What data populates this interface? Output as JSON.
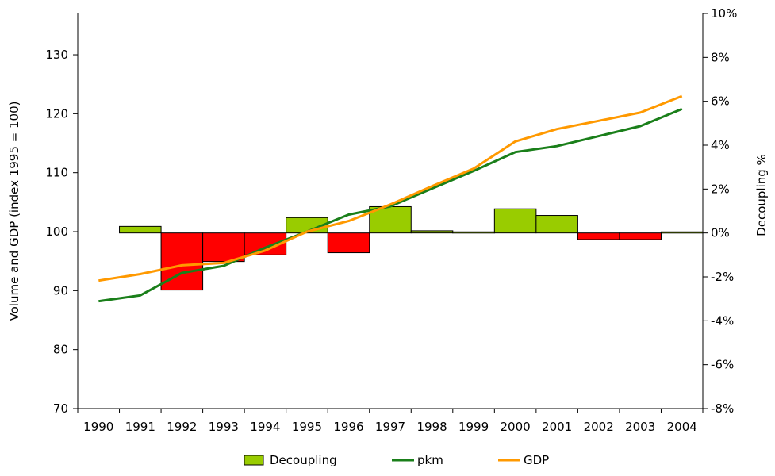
{
  "chart_data": {
    "type": "bar",
    "categories": [
      "1990",
      "1991",
      "1992",
      "1993",
      "1994",
      "1995",
      "1996",
      "1997",
      "1998",
      "1999",
      "2000",
      "2001",
      "2002",
      "2003",
      "2004"
    ],
    "ylabel": "Volume and GDP (index 1995 = 100)",
    "y2label": "Decoupling %",
    "ylim": [
      70,
      137
    ],
    "y2lim": [
      -0.08,
      0.1
    ],
    "yticks": [
      "70",
      "80",
      "90",
      "100",
      "110",
      "120",
      "130"
    ],
    "y2ticks": [
      "-8%",
      "-6%",
      "-4%",
      "-2%",
      "0%",
      "2%",
      "4%",
      "6%",
      "8%",
      "10%"
    ],
    "series": [
      {
        "name": "Decoupling",
        "kind": "bar",
        "axis": "right",
        "color_positive": "#99cc00",
        "color_negative": "#ff0000",
        "values": [
          null,
          0.003,
          -0.026,
          -0.013,
          -0.01,
          0.007,
          -0.009,
          0.012,
          0.001,
          0.0005,
          0.011,
          0.008,
          -0.003,
          -0.003,
          0.0005
        ]
      },
      {
        "name": "pkm",
        "kind": "line",
        "axis": "left",
        "color": "#1a7f1a",
        "values": [
          88.2,
          89.2,
          93.0,
          94.2,
          97.3,
          100.0,
          102.9,
          104.3,
          107.3,
          110.3,
          113.5,
          114.5,
          116.2,
          117.9,
          120.8
        ]
      },
      {
        "name": "GDP",
        "kind": "line",
        "axis": "left",
        "color": "#ff9900",
        "values": [
          91.7,
          92.8,
          94.3,
          94.7,
          96.8,
          100.0,
          101.8,
          104.6,
          107.7,
          110.7,
          115.3,
          117.4,
          118.8,
          120.2,
          123.0
        ]
      }
    ],
    "legend": {
      "placement": "bottom"
    }
  }
}
